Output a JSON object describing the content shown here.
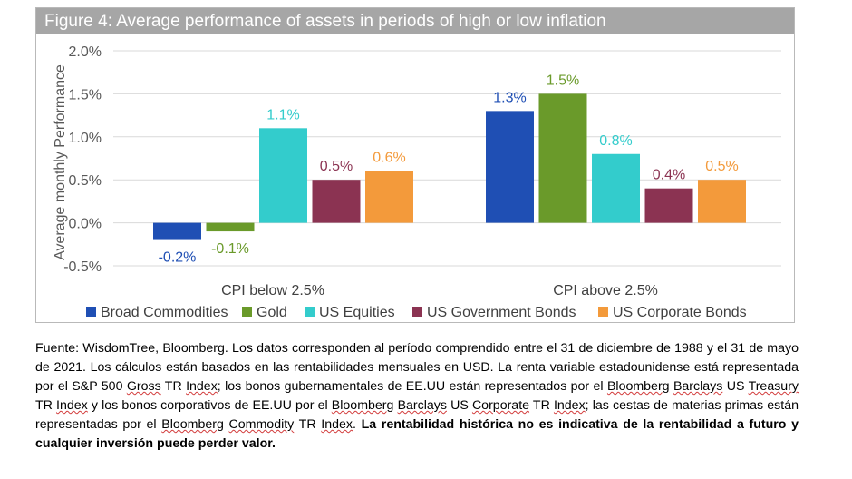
{
  "chart_data": {
    "type": "bar",
    "title": "Figure 4: Average performance of assets in periods of high or low inflation",
    "ylabel": "Average monthly Performance",
    "xlabel": "",
    "ylim": [
      -0.5,
      2.0
    ],
    "yticks": [
      2.0,
      1.5,
      1.0,
      0.5,
      0.0,
      -0.5
    ],
    "ytick_labels": [
      "2.0%",
      "1.5%",
      "1.0%",
      "0.5%",
      "0.0%",
      "-0.5%"
    ],
    "grid": true,
    "legend_position": "bottom",
    "categories": [
      "CPI below 2.5%",
      "CPI above 2.5%"
    ],
    "series": [
      {
        "name": "Broad Commodities",
        "color": "#1f4fb4",
        "values": [
          -0.2,
          1.3
        ],
        "labels": [
          "-0.2%",
          "1.3%"
        ]
      },
      {
        "name": "Gold",
        "color": "#6a9a2a",
        "values": [
          -0.1,
          1.5
        ],
        "labels": [
          "-0.1%",
          "1.5%"
        ]
      },
      {
        "name": "US Equities",
        "color": "#33cccc",
        "values": [
          1.1,
          0.8
        ],
        "labels": [
          "1.1%",
          "0.8%"
        ]
      },
      {
        "name": "US Government Bonds",
        "color": "#8b3352",
        "values": [
          0.5,
          0.4
        ],
        "labels": [
          "0.5%",
          "0.4%"
        ]
      },
      {
        "name": "US Corporate Bonds",
        "color": "#f39a3b",
        "values": [
          0.6,
          0.5
        ],
        "labels": [
          "0.6%",
          "0.5%"
        ]
      }
    ]
  },
  "caption": {
    "p01": "Fuente: WisdomTree, Bloomberg. Los datos corresponden al período comprendido entre el 31 de diciembre de 1988 y el 31 de mayo de 2021. Los cálculos están basados en las rentabilidades mensuales en USD. La renta variable estadounidense está representada por el S&P 500 ",
    "u01": "Gross",
    "p02": " TR ",
    "u02": "Index",
    "p03": "; los bonos gubernamentales de EE.UU están representados por el ",
    "u03": "Bloomberg",
    "p04": " ",
    "u04": "Barclays",
    "p05": " US ",
    "u05": "Treasury",
    "p06": " TR ",
    "u06": "Index",
    "p07": " y los bonos corporativos de EE.UU por el ",
    "u07": "Bloomberg",
    "p08": " ",
    "u08": "Barclays",
    "p09": " US ",
    "u09": "Corporate",
    "p10": " TR ",
    "u10": "Index",
    "p11": "; las cestas de materias primas están representadas por el ",
    "u11": "Bloomberg",
    "p12": " ",
    "u12": "Commodity",
    "p13": " TR ",
    "u13": "Index",
    "p14": ". ",
    "bold": "La rentabilidad histórica no es indicativa de la rentabilidad a futuro y cualquier inversión puede perder valor."
  }
}
